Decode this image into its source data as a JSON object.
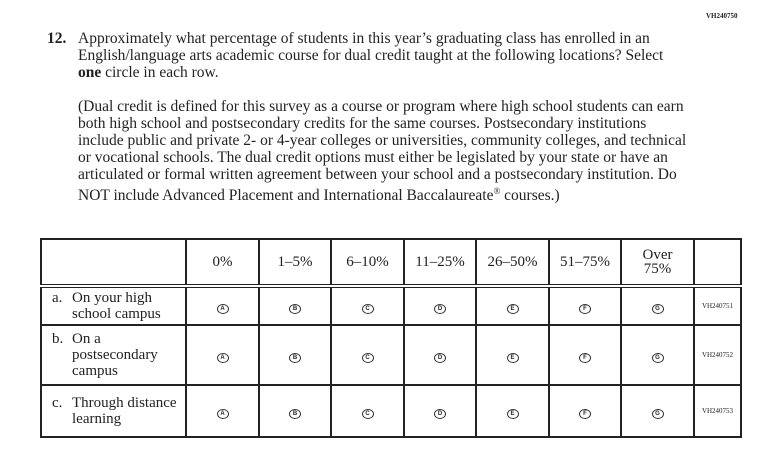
{
  "question": {
    "id": "VH240750",
    "number": "12.",
    "text_before": "Approximately what percentage of students in this year’s graduating class has enrolled in an English/language arts academic course for dual credit taught at the following locations? Select ",
    "text_bold": "one",
    "text_after": " circle in each row.",
    "note_main": "(Dual credit is defined for this survey as a course or program where high school students can earn both high school and postsecondary credits for the same courses. Postsecondary institutions include public and private 2- or 4-year colleges or universities, community colleges, and technical or vocational schools. The dual credit options must either be legislated by your state or have an articulated or formal written agreement between your school and a postsecondary institution. Do NOT include Advanced Placement and International Baccalaureate",
    "note_sup": "®",
    "note_end": " courses.)"
  },
  "table": {
    "columns": [
      "0%",
      "1–5%",
      "6–10%",
      "11–25%",
      "26–50%",
      "51–75%",
      "Over 75%"
    ],
    "bubbles": [
      "A",
      "B",
      "C",
      "D",
      "E",
      "F",
      "G"
    ],
    "rows": [
      {
        "letter": "a.",
        "label": "On your high school campus",
        "id": "VH240751"
      },
      {
        "letter": "b.",
        "label": "On a postsecondary campus",
        "id": "VH240752"
      },
      {
        "letter": "c.",
        "label": "Through distance learning",
        "id": "VH240753"
      }
    ]
  }
}
